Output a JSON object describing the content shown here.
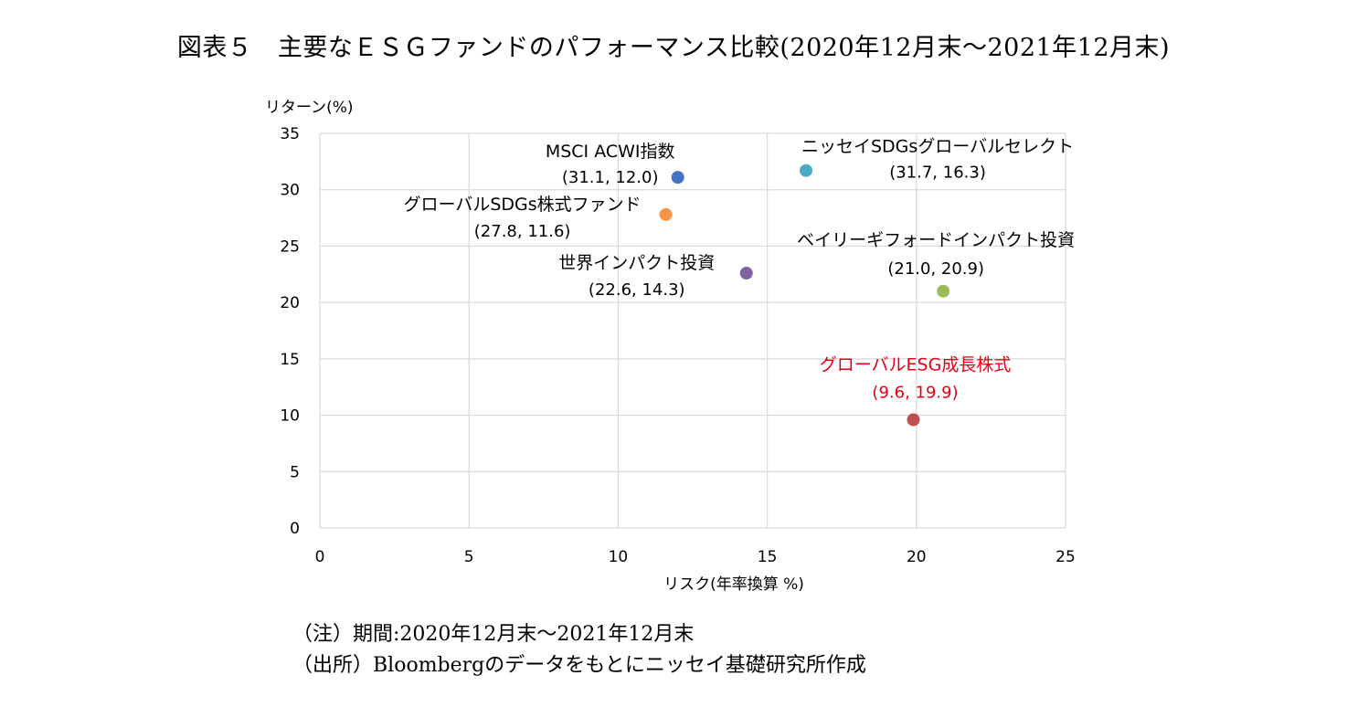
{
  "title": "図表５　主要なＥＳＧファンドのパフォーマンス比較(2020年12月末～2021年12月末)",
  "notes": [
    "（注）期間:2020年12月末～2021年12月末",
    "（出所）Bloombergのデータをもとにニッセイ基礎研究所作成"
  ],
  "chart_data": {
    "type": "scatter",
    "xlabel": "リスク(年率換算 %)",
    "ylabel": "リターン(%)",
    "xlim": [
      0,
      25
    ],
    "ylim": [
      0,
      35
    ],
    "xticks": [
      0,
      5,
      10,
      15,
      20,
      25
    ],
    "yticks": [
      0,
      5,
      10,
      15,
      20,
      25,
      30,
      35
    ],
    "grid": true,
    "points": [
      {
        "name": "MSCI ACWI指数",
        "label": "(31.1, 12.0)",
        "x": 12.0,
        "y": 31.1,
        "color": "#4472C4",
        "label_color": "#000000",
        "label_pos": "above-left"
      },
      {
        "name": "ニッセイSDGsグローバルセレクト",
        "label": "(31.7, 16.3)",
        "x": 16.3,
        "y": 31.7,
        "color": "#4BACC6",
        "label_color": "#000000",
        "label_pos": "right"
      },
      {
        "name": "グローバルSDGs株式ファンド",
        "label": "(27.8, 11.6)",
        "x": 11.6,
        "y": 27.8,
        "color": "#F79646",
        "label_color": "#000000",
        "label_pos": "left"
      },
      {
        "name": "世界インパクト投資",
        "label": "(22.6, 14.3)",
        "x": 14.3,
        "y": 22.6,
        "color": "#8064A2",
        "label_color": "#000000",
        "label_pos": "left"
      },
      {
        "name": "ベイリーギフォードインパクト投資",
        "label": "(21.0, 20.9)",
        "x": 20.9,
        "y": 21.0,
        "color": "#9BBB59",
        "label_color": "#000000",
        "label_pos": "above"
      },
      {
        "name": "グローバルESG成長株式",
        "label": "(9.6, 19.9)",
        "x": 19.9,
        "y": 9.6,
        "color": "#C0504D",
        "label_color": "#E60012",
        "label_pos": "above"
      }
    ]
  }
}
